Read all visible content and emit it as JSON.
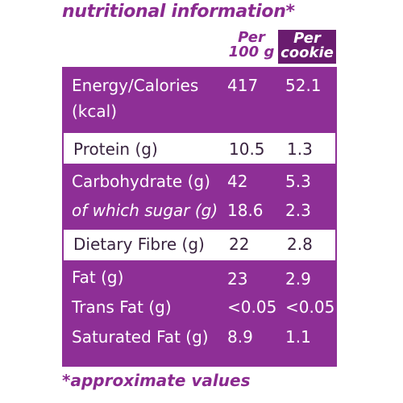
{
  "title": "nutritional information*",
  "headers": {
    "per100_line1": "Per",
    "per100_line2": "100 g",
    "perCookie_line1": "Per",
    "perCookie_line2": "cookie"
  },
  "rows": [
    {
      "label_line1": "Energy/Calories",
      "label_line2": "(kcal)",
      "per100": "417",
      "perCookie": "52.1"
    },
    {
      "label": "Protein (g)",
      "per100": "10.5",
      "perCookie": "1.3"
    },
    {
      "label": "Carbohydrate (g)",
      "per100": "42",
      "perCookie": "5.3"
    },
    {
      "label": "of which sugar (g)",
      "per100": "18.6",
      "perCookie": "2.3"
    },
    {
      "label": "Dietary Fibre (g)",
      "per100": "22",
      "perCookie": "2.8"
    },
    {
      "label": "Fat (g)",
      "per100": "23",
      "perCookie": "2.9"
    },
    {
      "label": "Trans Fat (g)",
      "per100": "<0.05",
      "perCookie": "<0.05"
    },
    {
      "label": "Saturated Fat (g)",
      "per100": "8.9",
      "perCookie": "1.1"
    }
  ],
  "footnote": "*approximate values",
  "colors": {
    "purple": "#8e2f96",
    "darkPurple": "#6a1c6f",
    "text": "#8a2a8f"
  }
}
